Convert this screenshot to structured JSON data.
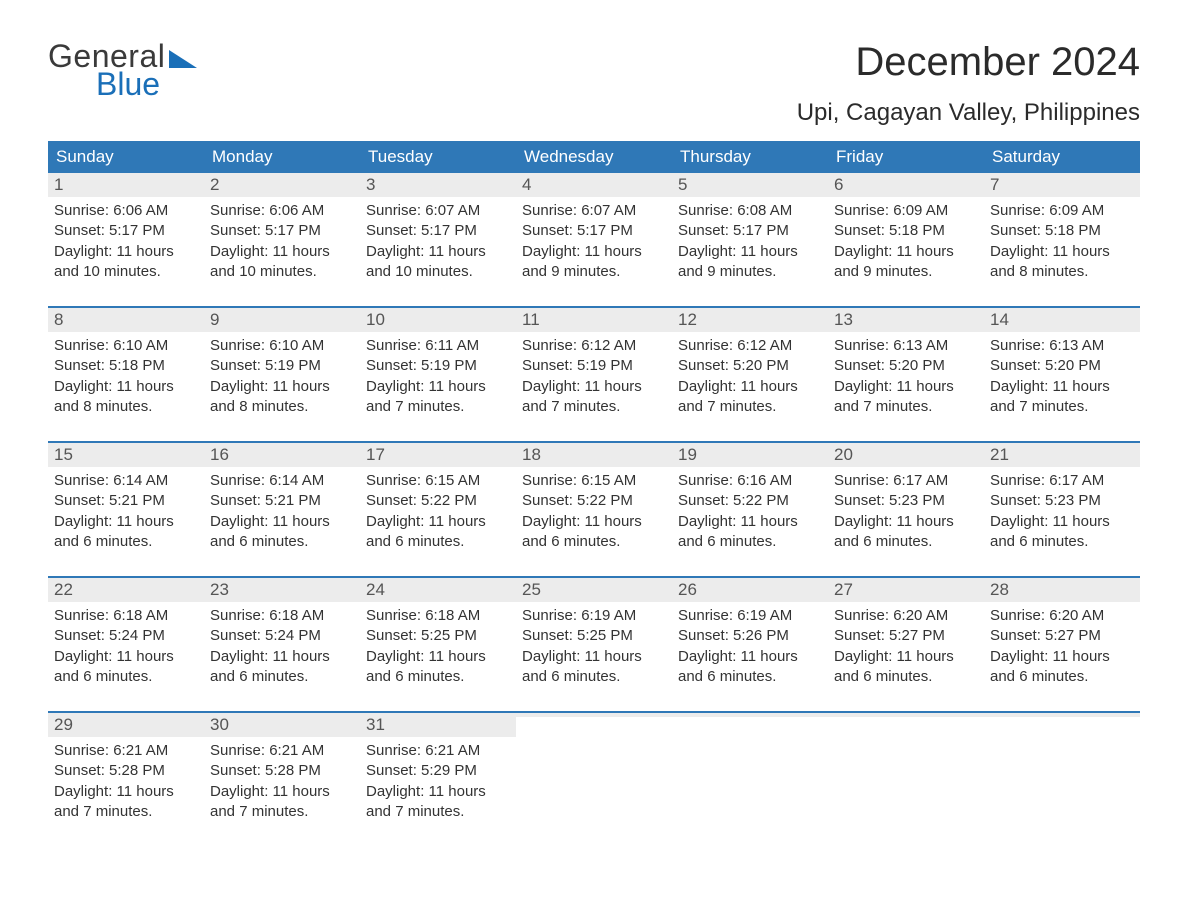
{
  "logo": {
    "line1": "General",
    "line2": "Blue"
  },
  "title": "December 2024",
  "location": "Upi, Cagayan Valley, Philippines",
  "colors": {
    "header_bg": "#2f78b7",
    "header_text": "#ffffff",
    "daynum_bg": "#ececec",
    "week_border": "#2f78b7",
    "logo_blue": "#1a6fb8",
    "body_text": "#333333",
    "background": "#ffffff"
  },
  "weekdays": [
    "Sunday",
    "Monday",
    "Tuesday",
    "Wednesday",
    "Thursday",
    "Friday",
    "Saturday"
  ],
  "weeks": [
    [
      {
        "day": "1",
        "sunrise": "Sunrise: 6:06 AM",
        "sunset": "Sunset: 5:17 PM",
        "dl1": "Daylight: 11 hours",
        "dl2": "and 10 minutes."
      },
      {
        "day": "2",
        "sunrise": "Sunrise: 6:06 AM",
        "sunset": "Sunset: 5:17 PM",
        "dl1": "Daylight: 11 hours",
        "dl2": "and 10 minutes."
      },
      {
        "day": "3",
        "sunrise": "Sunrise: 6:07 AM",
        "sunset": "Sunset: 5:17 PM",
        "dl1": "Daylight: 11 hours",
        "dl2": "and 10 minutes."
      },
      {
        "day": "4",
        "sunrise": "Sunrise: 6:07 AM",
        "sunset": "Sunset: 5:17 PM",
        "dl1": "Daylight: 11 hours",
        "dl2": "and 9 minutes."
      },
      {
        "day": "5",
        "sunrise": "Sunrise: 6:08 AM",
        "sunset": "Sunset: 5:17 PM",
        "dl1": "Daylight: 11 hours",
        "dl2": "and 9 minutes."
      },
      {
        "day": "6",
        "sunrise": "Sunrise: 6:09 AM",
        "sunset": "Sunset: 5:18 PM",
        "dl1": "Daylight: 11 hours",
        "dl2": "and 9 minutes."
      },
      {
        "day": "7",
        "sunrise": "Sunrise: 6:09 AM",
        "sunset": "Sunset: 5:18 PM",
        "dl1": "Daylight: 11 hours",
        "dl2": "and 8 minutes."
      }
    ],
    [
      {
        "day": "8",
        "sunrise": "Sunrise: 6:10 AM",
        "sunset": "Sunset: 5:18 PM",
        "dl1": "Daylight: 11 hours",
        "dl2": "and 8 minutes."
      },
      {
        "day": "9",
        "sunrise": "Sunrise: 6:10 AM",
        "sunset": "Sunset: 5:19 PM",
        "dl1": "Daylight: 11 hours",
        "dl2": "and 8 minutes."
      },
      {
        "day": "10",
        "sunrise": "Sunrise: 6:11 AM",
        "sunset": "Sunset: 5:19 PM",
        "dl1": "Daylight: 11 hours",
        "dl2": "and 7 minutes."
      },
      {
        "day": "11",
        "sunrise": "Sunrise: 6:12 AM",
        "sunset": "Sunset: 5:19 PM",
        "dl1": "Daylight: 11 hours",
        "dl2": "and 7 minutes."
      },
      {
        "day": "12",
        "sunrise": "Sunrise: 6:12 AM",
        "sunset": "Sunset: 5:20 PM",
        "dl1": "Daylight: 11 hours",
        "dl2": "and 7 minutes."
      },
      {
        "day": "13",
        "sunrise": "Sunrise: 6:13 AM",
        "sunset": "Sunset: 5:20 PM",
        "dl1": "Daylight: 11 hours",
        "dl2": "and 7 minutes."
      },
      {
        "day": "14",
        "sunrise": "Sunrise: 6:13 AM",
        "sunset": "Sunset: 5:20 PM",
        "dl1": "Daylight: 11 hours",
        "dl2": "and 7 minutes."
      }
    ],
    [
      {
        "day": "15",
        "sunrise": "Sunrise: 6:14 AM",
        "sunset": "Sunset: 5:21 PM",
        "dl1": "Daylight: 11 hours",
        "dl2": "and 6 minutes."
      },
      {
        "day": "16",
        "sunrise": "Sunrise: 6:14 AM",
        "sunset": "Sunset: 5:21 PM",
        "dl1": "Daylight: 11 hours",
        "dl2": "and 6 minutes."
      },
      {
        "day": "17",
        "sunrise": "Sunrise: 6:15 AM",
        "sunset": "Sunset: 5:22 PM",
        "dl1": "Daylight: 11 hours",
        "dl2": "and 6 minutes."
      },
      {
        "day": "18",
        "sunrise": "Sunrise: 6:15 AM",
        "sunset": "Sunset: 5:22 PM",
        "dl1": "Daylight: 11 hours",
        "dl2": "and 6 minutes."
      },
      {
        "day": "19",
        "sunrise": "Sunrise: 6:16 AM",
        "sunset": "Sunset: 5:22 PM",
        "dl1": "Daylight: 11 hours",
        "dl2": "and 6 minutes."
      },
      {
        "day": "20",
        "sunrise": "Sunrise: 6:17 AM",
        "sunset": "Sunset: 5:23 PM",
        "dl1": "Daylight: 11 hours",
        "dl2": "and 6 minutes."
      },
      {
        "day": "21",
        "sunrise": "Sunrise: 6:17 AM",
        "sunset": "Sunset: 5:23 PM",
        "dl1": "Daylight: 11 hours",
        "dl2": "and 6 minutes."
      }
    ],
    [
      {
        "day": "22",
        "sunrise": "Sunrise: 6:18 AM",
        "sunset": "Sunset: 5:24 PM",
        "dl1": "Daylight: 11 hours",
        "dl2": "and 6 minutes."
      },
      {
        "day": "23",
        "sunrise": "Sunrise: 6:18 AM",
        "sunset": "Sunset: 5:24 PM",
        "dl1": "Daylight: 11 hours",
        "dl2": "and 6 minutes."
      },
      {
        "day": "24",
        "sunrise": "Sunrise: 6:18 AM",
        "sunset": "Sunset: 5:25 PM",
        "dl1": "Daylight: 11 hours",
        "dl2": "and 6 minutes."
      },
      {
        "day": "25",
        "sunrise": "Sunrise: 6:19 AM",
        "sunset": "Sunset: 5:25 PM",
        "dl1": "Daylight: 11 hours",
        "dl2": "and 6 minutes."
      },
      {
        "day": "26",
        "sunrise": "Sunrise: 6:19 AM",
        "sunset": "Sunset: 5:26 PM",
        "dl1": "Daylight: 11 hours",
        "dl2": "and 6 minutes."
      },
      {
        "day": "27",
        "sunrise": "Sunrise: 6:20 AM",
        "sunset": "Sunset: 5:27 PM",
        "dl1": "Daylight: 11 hours",
        "dl2": "and 6 minutes."
      },
      {
        "day": "28",
        "sunrise": "Sunrise: 6:20 AM",
        "sunset": "Sunset: 5:27 PM",
        "dl1": "Daylight: 11 hours",
        "dl2": "and 6 minutes."
      }
    ],
    [
      {
        "day": "29",
        "sunrise": "Sunrise: 6:21 AM",
        "sunset": "Sunset: 5:28 PM",
        "dl1": "Daylight: 11 hours",
        "dl2": "and 7 minutes."
      },
      {
        "day": "30",
        "sunrise": "Sunrise: 6:21 AM",
        "sunset": "Sunset: 5:28 PM",
        "dl1": "Daylight: 11 hours",
        "dl2": "and 7 minutes."
      },
      {
        "day": "31",
        "sunrise": "Sunrise: 6:21 AM",
        "sunset": "Sunset: 5:29 PM",
        "dl1": "Daylight: 11 hours",
        "dl2": "and 7 minutes."
      },
      {
        "empty": true
      },
      {
        "empty": true
      },
      {
        "empty": true
      },
      {
        "empty": true
      }
    ]
  ]
}
